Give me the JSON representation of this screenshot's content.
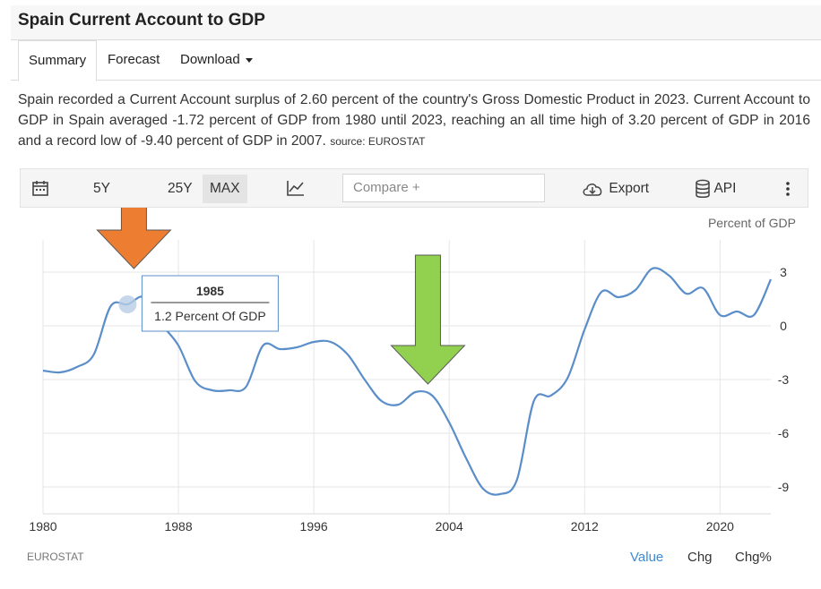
{
  "header": {
    "title": "Spain Current Account to GDP"
  },
  "tabs": [
    {
      "label": "Summary",
      "active": true
    },
    {
      "label": "Forecast",
      "active": false
    },
    {
      "label": "Download",
      "active": false
    }
  ],
  "description": {
    "text": "Spain recorded a Current Account surplus of 2.60 percent of the country's Gross Domestic Product in 2023. Current Account to GDP in Spain averaged -1.72 percent of GDP from 1980 until 2023, reaching an all time high of 3.20 percent of GDP in 2016 and a record low of -9.40 percent of GDP in 2007.",
    "source": "source: EUROSTAT"
  },
  "toolbar": {
    "ranges": [
      "5Y",
      "25Y",
      "MAX"
    ],
    "selected_range": "MAX",
    "compare_placeholder": "Compare +",
    "export_label": "Export",
    "api_label": "API"
  },
  "chart_data": {
    "type": "line",
    "title": "",
    "ylabel": "Percent of GDP",
    "xlabel": "",
    "xlim": [
      1980,
      2023
    ],
    "ylim": [
      -10.5,
      4.8
    ],
    "yticks": [
      3,
      0,
      -3,
      -6,
      -9
    ],
    "xticks": [
      1980,
      1988,
      1996,
      2004,
      2012,
      2020
    ],
    "grid": true,
    "series": [
      {
        "values": [
          [
            1980,
            -2.5
          ],
          [
            1981,
            -2.6
          ],
          [
            1982,
            -2.3
          ],
          [
            1983,
            -1.6
          ],
          [
            1984,
            1.1
          ],
          [
            1985,
            1.2
          ],
          [
            1986,
            1.6
          ],
          [
            1987,
            0.1
          ],
          [
            1988,
            -1.1
          ],
          [
            1989,
            -3.1
          ],
          [
            1990,
            -3.6
          ],
          [
            1991,
            -3.6
          ],
          [
            1992,
            -3.4
          ],
          [
            1993,
            -1.1
          ],
          [
            1994,
            -1.3
          ],
          [
            1995,
            -1.2
          ],
          [
            1996,
            -0.9
          ],
          [
            1997,
            -0.9
          ],
          [
            1998,
            -1.6
          ],
          [
            1999,
            -3.0
          ],
          [
            2000,
            -4.2
          ],
          [
            2001,
            -4.4
          ],
          [
            2002,
            -3.7
          ],
          [
            2003,
            -3.9
          ],
          [
            2004,
            -5.4
          ],
          [
            2005,
            -7.4
          ],
          [
            2006,
            -9.1
          ],
          [
            2007,
            -9.4
          ],
          [
            2008,
            -8.6
          ],
          [
            2009,
            -4.2
          ],
          [
            2010,
            -3.9
          ],
          [
            2011,
            -2.9
          ],
          [
            2012,
            -0.2
          ],
          [
            2013,
            1.9
          ],
          [
            2014,
            1.6
          ],
          [
            2015,
            2.0
          ],
          [
            2016,
            3.2
          ],
          [
            2017,
            2.8
          ],
          [
            2018,
            1.8
          ],
          [
            2019,
            2.1
          ],
          [
            2020,
            0.6
          ],
          [
            2021,
            0.8
          ],
          [
            2022,
            0.6
          ],
          [
            2023,
            2.6
          ]
        ]
      }
    ],
    "tooltip": {
      "x_label": "1985",
      "value_text": "1.2 Percent Of GDP"
    },
    "annotations": [
      {
        "shape": "arrow-down",
        "color": "#ed7d31",
        "near": "1985"
      },
      {
        "shape": "arrow-down",
        "color": "#92d050",
        "near": "2002"
      }
    ],
    "line_color": "#5b8ec9",
    "source": "EUROSTAT"
  },
  "footer": {
    "source": "EUROSTAT",
    "value_tabs": [
      "Value",
      "Chg",
      "Chg%"
    ],
    "active_value_tab": "Value"
  }
}
